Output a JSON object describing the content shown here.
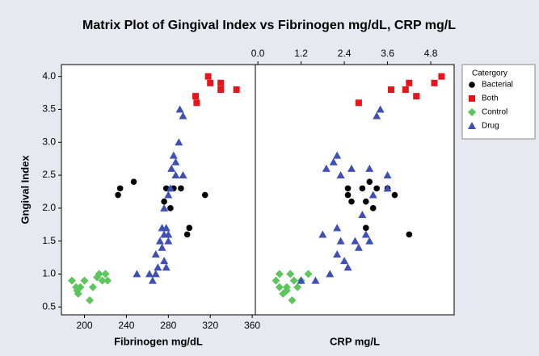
{
  "chart_data": [
    {
      "type": "scatter",
      "title": "Matrix Plot of Gingival Index vs Fibrinogen mg/dL, CRP mg/L",
      "xlabel": "Fibrinogen mg/dL",
      "ylabel": "Gngival Index",
      "legend_title": "Catergory",
      "legend": "right",
      "xlim": [
        178,
        363
      ],
      "ylim": [
        0.38,
        4.18
      ],
      "xaxis_position": "bottom",
      "xticks": [
        200,
        240,
        280,
        320,
        360
      ],
      "yticks": [
        {
          "value": 0.5,
          "label": "0.5"
        },
        {
          "value": 1.0,
          "label": "1.0"
        },
        {
          "value": 1.5,
          "label": "1.5"
        },
        {
          "value": 2.0,
          "label": "2.0"
        },
        {
          "value": 2.5,
          "label": "2.5"
        },
        {
          "value": 3.0,
          "label": "3.0"
        },
        {
          "value": 3.5,
          "label": "3.5"
        },
        {
          "value": 4.0,
          "label": "4.0"
        }
      ],
      "series": [
        {
          "name": "Bacterial",
          "color": "#000000",
          "marker": "circle",
          "x": [
            232,
            234,
            247,
            278,
            285,
            292,
            276,
            282,
            300,
            298,
            315
          ],
          "y": [
            2.2,
            2.3,
            2.4,
            2.3,
            2.3,
            2.3,
            2.1,
            2.0,
            1.7,
            1.6,
            2.2
          ]
        },
        {
          "name": "Both",
          "color": "#e8141c",
          "marker": "square",
          "x": [
            318,
            320,
            330,
            330,
            345,
            306,
            307
          ],
          "y": [
            4.0,
            3.9,
            3.9,
            3.8,
            3.8,
            3.7,
            3.6
          ]
        },
        {
          "name": "Control",
          "color": "#5cc55c",
          "marker": "diamond",
          "x": [
            188,
            192,
            194,
            196,
            200,
            205,
            208,
            212,
            214,
            217,
            220,
            222,
            193
          ],
          "y": [
            0.9,
            0.8,
            0.7,
            0.8,
            0.9,
            0.6,
            0.8,
            0.95,
            1.0,
            0.9,
            1.0,
            0.9,
            0.75
          ]
        },
        {
          "name": "Drug",
          "color": "#3f4fb5",
          "marker": "triangle",
          "x": [
            250,
            262,
            265,
            268,
            270,
            268,
            272,
            274,
            276,
            274,
            278,
            280,
            276,
            278,
            280,
            283,
            285,
            287,
            290,
            291,
            294,
            294,
            287,
            280,
            276,
            282
          ],
          "y": [
            1.0,
            1.0,
            0.9,
            1.0,
            1.1,
            1.3,
            1.5,
            1.4,
            1.6,
            1.7,
            1.7,
            1.5,
            1.2,
            1.1,
            2.2,
            2.6,
            2.8,
            2.7,
            3.0,
            3.5,
            3.4,
            2.5,
            2.5,
            1.6,
            2.0,
            2.3
          ]
        }
      ]
    },
    {
      "type": "scatter",
      "xlabel": "CRP mg/L",
      "xlim": [
        -0.07,
        5.45
      ],
      "ylim": [
        0.38,
        4.18
      ],
      "xaxis_position": "top",
      "xticks": [
        {
          "value": 0.0,
          "label": "0.0"
        },
        1.2,
        2.4,
        3.6,
        4.8
      ],
      "series": [
        {
          "color": "#000000",
          "marker": "circle",
          "x": [
            2.5,
            2.5,
            2.9,
            3.1,
            3.3,
            3.6,
            3.0,
            3.2,
            3.8,
            3.0,
            4.2,
            2.6
          ],
          "y": [
            2.3,
            2.2,
            2.3,
            2.4,
            2.3,
            2.3,
            2.1,
            2.0,
            2.2,
            1.7,
            1.6,
            2.1
          ]
        },
        {
          "color": "#e8141c",
          "marker": "square",
          "x": [
            2.8,
            3.7,
            4.1,
            4.2,
            4.4,
            4.9,
            5.1
          ],
          "y": [
            3.6,
            3.8,
            3.8,
            3.9,
            3.7,
            3.9,
            4.0
          ]
        },
        {
          "color": "#5cc55c",
          "marker": "diamond",
          "x": [
            0.5,
            0.6,
            0.7,
            0.8,
            0.9,
            0.95,
            1.1,
            1.2,
            1.4,
            0.6,
            1.0,
            0.8
          ],
          "y": [
            0.9,
            0.8,
            0.7,
            0.8,
            1.0,
            0.6,
            0.8,
            0.9,
            1.0,
            1.0,
            0.9,
            0.75
          ]
        },
        {
          "color": "#3f4fb5",
          "marker": "triangle",
          "x": [
            1.2,
            1.6,
            2.0,
            2.2,
            2.4,
            2.5,
            2.3,
            2.2,
            2.7,
            2.8,
            1.8,
            1.9,
            2.1,
            2.2,
            2.6,
            2.3,
            3.1,
            3.2,
            3.3,
            3.4,
            3.6,
            3.1,
            3.0,
            3.6,
            2.9
          ],
          "y": [
            0.9,
            0.9,
            1.0,
            1.3,
            1.2,
            1.1,
            1.5,
            1.7,
            1.5,
            1.4,
            1.6,
            2.6,
            2.7,
            2.8,
            2.6,
            2.5,
            2.6,
            2.2,
            3.4,
            3.5,
            2.3,
            1.5,
            1.6,
            2.5,
            1.9
          ]
        }
      ]
    }
  ]
}
